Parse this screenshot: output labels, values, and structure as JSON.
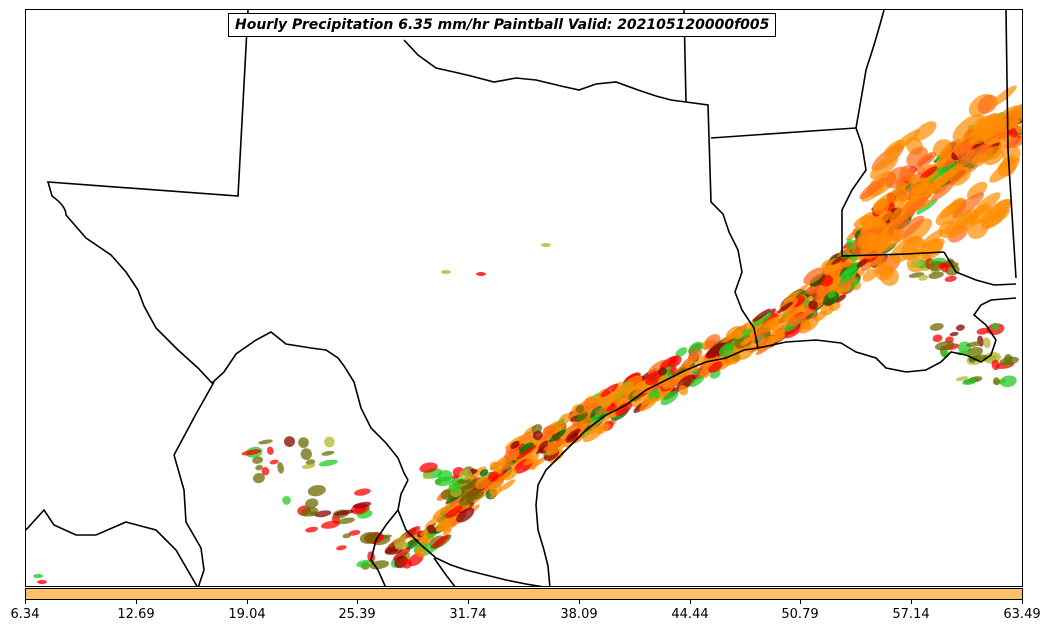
{
  "title": "Hourly Precipitation 6.35 mm/hr Paintball Valid: 202105120000f005",
  "colorbar": {
    "fill_color": "#ffc06a",
    "tick_labels": [
      "6.34",
      "12.69",
      "19.04",
      "25.39",
      "31.74",
      "38.09",
      "44.44",
      "50.79",
      "57.14",
      "63.49"
    ]
  },
  "member_colors": [
    "#ff8c00",
    "#ff0000",
    "#8b0000",
    "#22cc22",
    "#006400",
    "#6b6b00",
    "#ff6a1a",
    "#333333",
    "#b5b530"
  ],
  "map_features": [
    "state-borders",
    "coastline",
    "country-border"
  ]
}
